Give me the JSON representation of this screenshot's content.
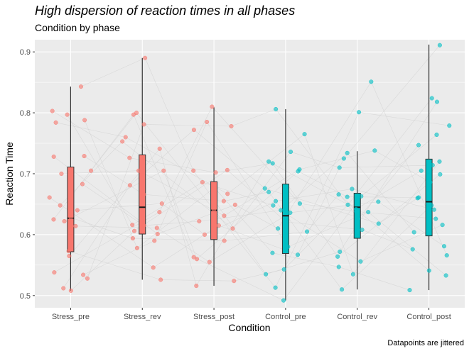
{
  "chart_data": {
    "type": "boxplot",
    "title": "High dispersion of reaction times in all phases",
    "subtitle": "Condition by phase",
    "xlabel": "Condition",
    "ylabel": "Reaction Time",
    "caption": "Datapoints are jittered",
    "ylim": [
      0.48,
      0.92
    ],
    "yticks": [
      0.5,
      0.6,
      0.7,
      0.8,
      0.9
    ],
    "ytick_labels": [
      "0.5",
      "0.6",
      "0.7",
      "0.8",
      "0.9"
    ],
    "grid": true,
    "colors": {
      "panel_bg": "#ebebeb",
      "grid": "#ffffff",
      "stress": "#f8766d",
      "control": "#00bfc4",
      "lines": "#d0d0d0",
      "whisker": "#333333"
    },
    "categories": [
      "Stress_pre",
      "Stress_rev",
      "Stress_post",
      "Control_pre",
      "Control_rev",
      "Control_post"
    ],
    "boxes": [
      {
        "category": "Stress_pre",
        "group": "stress",
        "whisker_low": 0.508,
        "q1": 0.572,
        "median": 0.627,
        "q3": 0.711,
        "whisker_high": 0.843
      },
      {
        "category": "Stress_rev",
        "group": "stress",
        "whisker_low": 0.526,
        "q1": 0.601,
        "median": 0.645,
        "q3": 0.731,
        "whisker_high": 0.89
      },
      {
        "category": "Stress_post",
        "group": "stress",
        "whisker_low": 0.516,
        "q1": 0.592,
        "median": 0.64,
        "q3": 0.687,
        "whisker_high": 0.809
      },
      {
        "category": "Control_pre",
        "group": "control",
        "whisker_low": 0.492,
        "q1": 0.569,
        "median": 0.631,
        "q3": 0.683,
        "whisker_high": 0.806
      },
      {
        "category": "Control_rev",
        "group": "control",
        "whisker_low": 0.51,
        "q1": 0.594,
        "median": 0.645,
        "q3": 0.668,
        "whisker_high": 0.737
      },
      {
        "category": "Control_post",
        "group": "control",
        "whisker_low": 0.509,
        "q1": 0.598,
        "median": 0.654,
        "q3": 0.724,
        "whisker_high": 0.912
      }
    ],
    "points": [
      [
        0.843,
        0.803,
        0.797,
        0.788,
        0.784,
        0.729,
        0.728,
        0.705,
        0.7,
        0.683,
        0.661,
        0.648,
        0.64,
        0.628,
        0.625,
        0.622,
        0.614,
        0.573,
        0.565,
        0.538,
        0.534,
        0.528,
        0.512,
        0.508
      ],
      [
        0.89,
        0.8,
        0.797,
        0.781,
        0.76,
        0.753,
        0.741,
        0.726,
        0.705,
        0.705,
        0.681,
        0.666,
        0.651,
        0.637,
        0.616,
        0.615,
        0.611,
        0.606,
        0.601,
        0.594,
        0.59,
        0.578,
        0.546,
        0.526
      ],
      [
        0.81,
        0.785,
        0.778,
        0.772,
        0.706,
        0.705,
        0.702,
        0.686,
        0.677,
        0.667,
        0.655,
        0.649,
        0.641,
        0.631,
        0.622,
        0.615,
        0.61,
        0.6,
        0.59,
        0.563,
        0.56,
        0.555,
        0.524,
        0.516
      ],
      [
        0.806,
        0.765,
        0.736,
        0.72,
        0.717,
        0.707,
        0.704,
        0.676,
        0.67,
        0.655,
        0.651,
        0.648,
        0.64,
        0.636,
        0.621,
        0.61,
        0.605,
        0.58,
        0.57,
        0.567,
        0.543,
        0.535,
        0.513,
        0.492
      ],
      [
        0.851,
        0.801,
        0.738,
        0.734,
        0.725,
        0.71,
        0.675,
        0.666,
        0.663,
        0.662,
        0.654,
        0.649,
        0.642,
        0.638,
        0.637,
        0.626,
        0.618,
        0.608,
        0.572,
        0.564,
        0.556,
        0.547,
        0.535,
        0.51
      ],
      [
        0.911,
        0.824,
        0.818,
        0.779,
        0.764,
        0.747,
        0.72,
        0.714,
        0.705,
        0.699,
        0.686,
        0.661,
        0.66,
        0.648,
        0.641,
        0.626,
        0.616,
        0.604,
        0.581,
        0.576,
        0.566,
        0.541,
        0.533,
        0.509
      ]
    ]
  }
}
